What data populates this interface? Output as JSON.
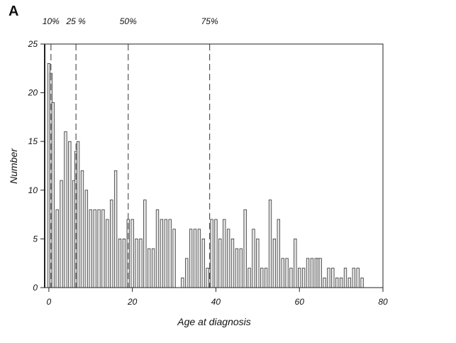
{
  "panel_label": "A",
  "chart_data": {
    "type": "bar",
    "title": "",
    "xlabel": "Age at diagnosis",
    "ylabel": "Number",
    "xlim": [
      -1,
      80
    ],
    "ylim": [
      0,
      25
    ],
    "xticks": [
      0,
      20,
      40,
      60,
      80
    ],
    "yticks": [
      0,
      5,
      10,
      15,
      20,
      25
    ],
    "bar_width": 0.6,
    "bar_color": "#e6e6e6",
    "bar_edge_color": "#333333",
    "grid": false,
    "x": [
      0,
      0.5,
      1,
      2,
      3,
      4,
      5,
      6,
      6.5,
      7,
      8,
      9,
      10,
      11,
      12,
      13,
      14,
      15,
      16,
      17,
      18,
      19,
      20,
      21,
      22,
      23,
      24,
      25,
      26,
      27,
      28,
      29,
      30,
      31,
      32,
      33,
      34,
      35,
      36,
      37,
      38,
      39,
      40,
      41,
      42,
      43,
      44,
      45,
      46,
      47,
      48,
      49,
      50,
      51,
      52,
      53,
      54,
      55,
      56,
      57,
      58,
      59,
      60,
      61,
      62,
      63,
      64,
      64.5,
      65,
      66,
      67,
      68,
      69,
      70,
      71,
      72,
      73,
      74,
      75
    ],
    "values": [
      23,
      22,
      19,
      8,
      11,
      16,
      15,
      11,
      14,
      15,
      12,
      10,
      8,
      8,
      8,
      8,
      7,
      9,
      12,
      5,
      5,
      7,
      7,
      5,
      5,
      9,
      4,
      4,
      8,
      7,
      7,
      7,
      6,
      0,
      1,
      3,
      6,
      6,
      6,
      5,
      2,
      7,
      7,
      5,
      7,
      6,
      5,
      4,
      4,
      8,
      2,
      6,
      5,
      2,
      2,
      9,
      5,
      7,
      3,
      3,
      2,
      5,
      2,
      2,
      3,
      3,
      3,
      3,
      3,
      1,
      2,
      2,
      1,
      1,
      2,
      1,
      2,
      2,
      1
    ],
    "percentile_lines": [
      {
        "label": "10%",
        "x": 0.5
      },
      {
        "label": "25 %",
        "x": 6.5
      },
      {
        "label": "50%",
        "x": 19
      },
      {
        "label": "75%",
        "x": 38.5
      }
    ]
  }
}
